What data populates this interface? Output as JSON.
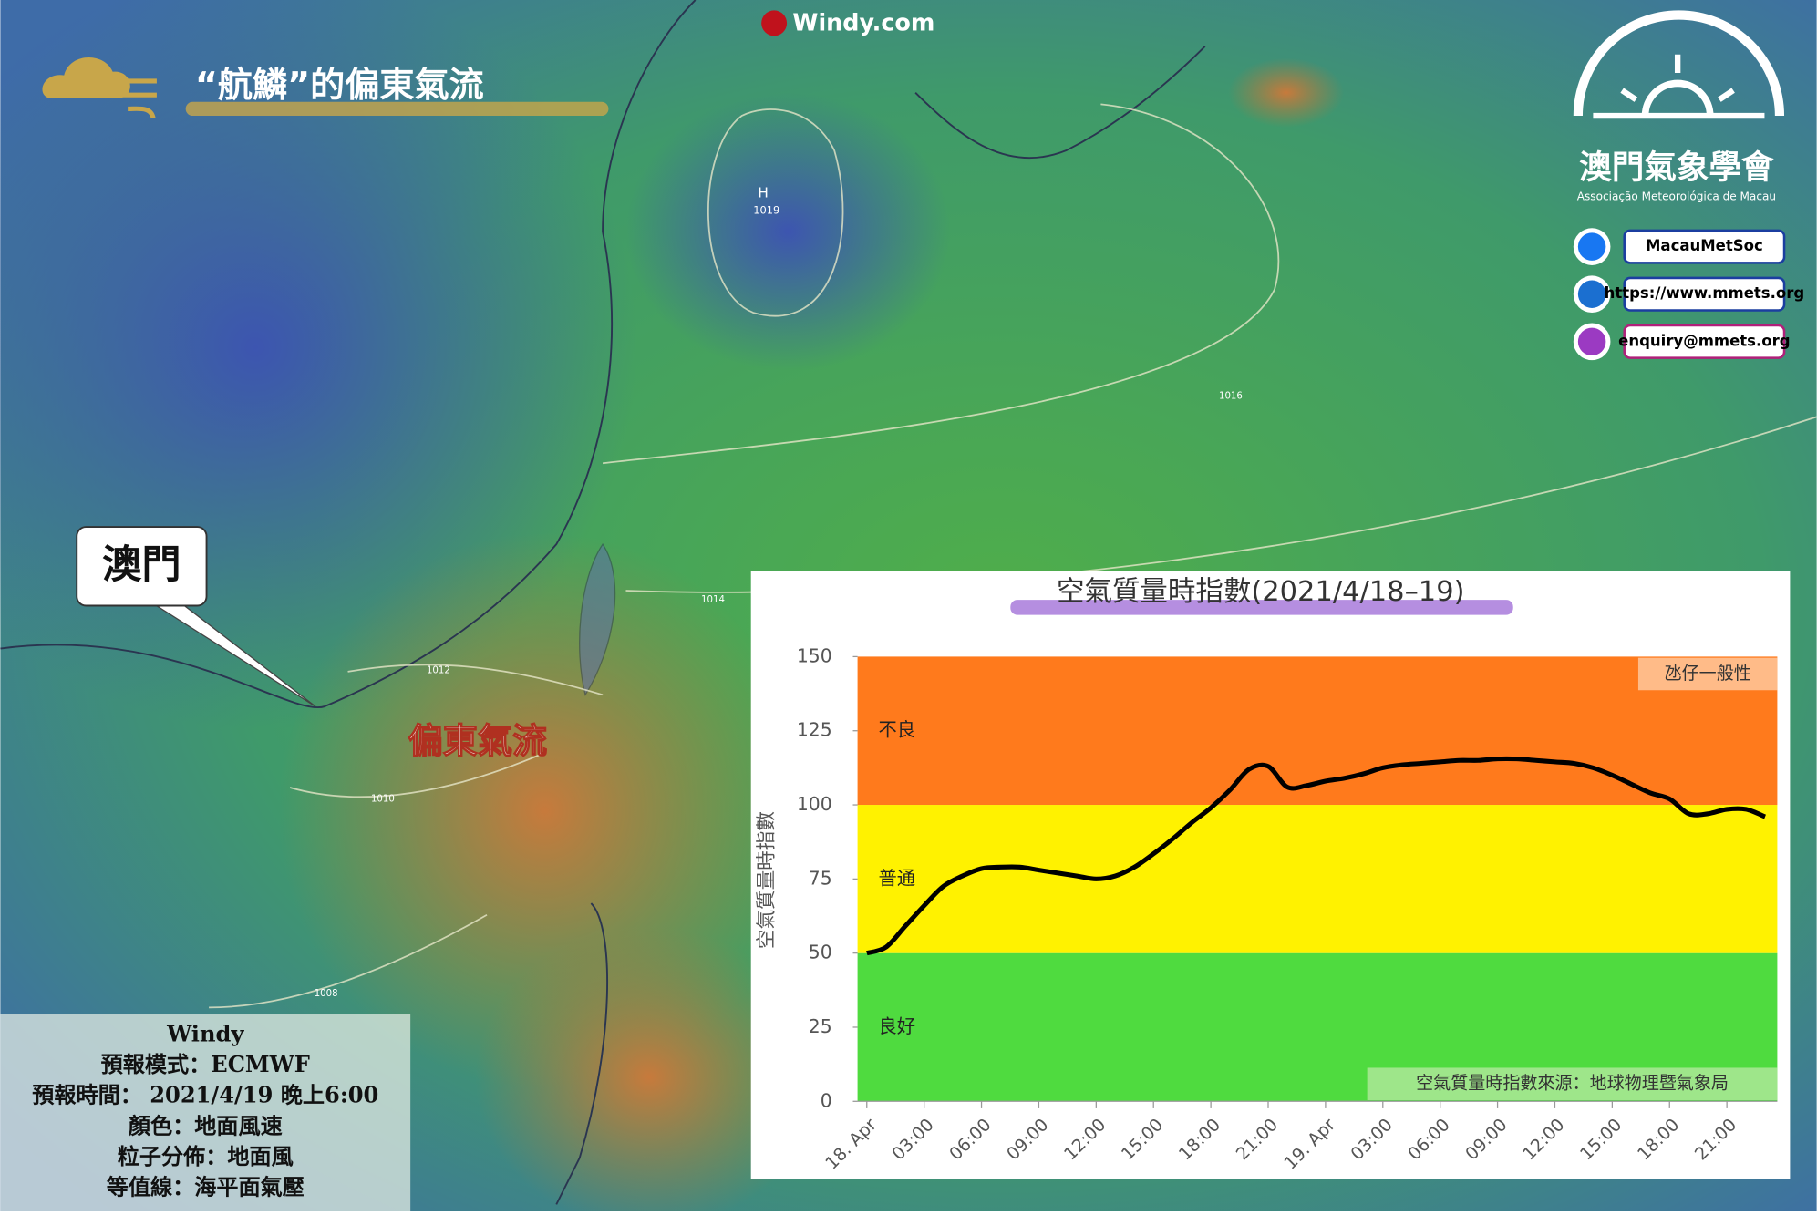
{
  "header": {
    "title": "“航鱗”的偏東氣流",
    "brand": "Windy.com"
  },
  "logo": {
    "name": "澳門氣象學會",
    "subtitle": "Associação Meteorológica de Macau"
  },
  "contacts": [
    "MacauMetSoc",
    "https://www.mmets.org",
    "enquiry@mmets.org"
  ],
  "map": {
    "callout": "澳門",
    "flow_label": "偏東氣流",
    "high": "H",
    "high_pressure": "1019",
    "isobars": [
      "1016",
      "1014",
      "1012",
      "1010",
      "1008"
    ]
  },
  "info_box": [
    "Windy",
    "預報模式：ECMWF",
    "預報時間： 2021/4/19 晚上6:00",
    "顏色：地面風速",
    "粒子分佈：地面風",
    "等值線：海平面氣壓"
  ],
  "chart_data": {
    "type": "line",
    "title": "空氣質量時指數(2021/4/18–19)",
    "y_label": "空氣質量時指數",
    "categories": [
      "18. Apr",
      null,
      null,
      "03:00",
      null,
      null,
      "06:00",
      null,
      null,
      "09:00",
      null,
      null,
      "12:00",
      null,
      null,
      "15:00",
      null,
      null,
      "18:00",
      null,
      null,
      "21:00",
      null,
      null,
      "19. Apr",
      null,
      null,
      "03:00",
      null,
      null,
      "06:00",
      null,
      null,
      "09:00",
      null,
      null,
      "12:00",
      null,
      null,
      "15:00",
      null,
      null,
      "18:00",
      null,
      null,
      "21:00",
      null,
      null
    ],
    "values": [
      50,
      52,
      59,
      66,
      72.5,
      76,
      78.5,
      79,
      79,
      78,
      77,
      76,
      75,
      76,
      79,
      83.5,
      88.5,
      94,
      99,
      105,
      112,
      113,
      106,
      106.5,
      108,
      109,
      110.5,
      112.5,
      113.5,
      114,
      114.5,
      115,
      115,
      115.5,
      115.5,
      115,
      114.5,
      114,
      112.5,
      110,
      107,
      104,
      102,
      97,
      97,
      98.5,
      98.5,
      96
    ],
    "color": "#000000",
    "ylim": [
      0,
      150
    ],
    "yticks": [
      0,
      25,
      50,
      75,
      100,
      125,
      150
    ],
    "bands": [
      {
        "from": 0,
        "to": 50,
        "label": "良好",
        "color": "#4fdb3f"
      },
      {
        "from": 50,
        "to": 100,
        "label": "普通",
        "color": "#fff200"
      },
      {
        "from": 100,
        "to": 150,
        "label": "不良",
        "color": "#ff7a1c"
      }
    ],
    "annotations": [
      "氹仔一般性",
      "空氣質量時指數來源：地球物理暨氣象局"
    ]
  }
}
